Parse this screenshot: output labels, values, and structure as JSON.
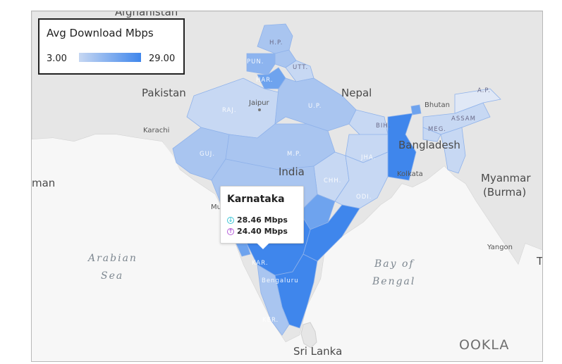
{
  "legend": {
    "title": "Avg Download Mbps",
    "min_label": "3.00",
    "max_label": "29.00",
    "color_low": "#c6d7f2",
    "color_high": "#3f86ec"
  },
  "tooltip": {
    "region": "Karnataka",
    "download": "28.46 Mbps",
    "upload": "24.40 Mbps",
    "download_icon": "download-arrow-icon",
    "upload_icon": "upload-arrow-icon"
  },
  "countries": {
    "afghanistan": "Afghanistan",
    "pakistan": "Pakistan",
    "nepal": "Nepal",
    "bhutan": "Bhutan",
    "bangladesh": "Bangladesh",
    "myanmar_line1": "Myanmar",
    "myanmar_line2": "(Burma)",
    "india": "India",
    "sri_lanka": "Sri Lanka",
    "oman_partial": "man",
    "thailand_partial": "T"
  },
  "cities": {
    "jaipur": "Jaipur",
    "karachi": "Karachi",
    "kolkata": "Kolkata",
    "yangon": "Yangon",
    "mumbai_partial": "Mu"
  },
  "seas": {
    "arabian_line1": "Arabian",
    "arabian_line2": "Sea",
    "bengal_line1": "Bay of",
    "bengal_line2": "Bengal"
  },
  "states": {
    "hp": "H.P.",
    "pun": "PUN.",
    "utt": "UTT.",
    "har": "HAR.",
    "raj": "RAJ.",
    "up": "U.P.",
    "bih": "BIH.",
    "guj": "GUJ.",
    "mp": "M.P.",
    "jha": "JHA.",
    "chh": "CHH.",
    "odi": "ODI.",
    "ap": "A.P.",
    "assam": "ASSAM",
    "meg": "MEG.",
    "kar": "KAR.",
    "beng": "Bengaluru",
    "ker": "KER."
  },
  "colors": {
    "water": "#f7f7f7",
    "land": "#e4e4e4",
    "state_light": "#c7d8f3",
    "state_mid": "#a9c5f0",
    "state_strong": "#6ea3ee",
    "state_max": "#3f86ec"
  },
  "branding": {
    "logo": "OOKLA"
  }
}
